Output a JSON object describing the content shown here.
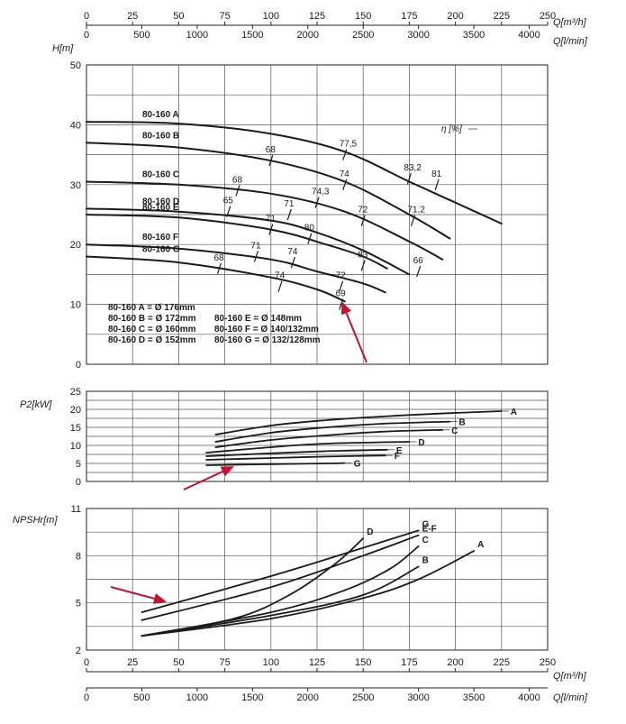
{
  "top_axis": {
    "q_m3h_label": "Q[m³/h]",
    "q_lmin_label": "Q[l/min]",
    "m3h_ticks": [
      "0",
      "25",
      "50",
      "75",
      "100",
      "125",
      "150",
      "175",
      "200",
      "225",
      "250"
    ],
    "lmin_ticks": [
      "0",
      "500",
      "1000",
      "1500",
      "2000",
      "2500",
      "3000",
      "3500",
      "4000"
    ]
  },
  "bottom_axis": {
    "q_m3h_label": "Q[m³/h]",
    "q_lmin_label": "Q[l/min]",
    "m3h_ticks": [
      "0",
      "25",
      "50",
      "75",
      "100",
      "125",
      "150",
      "175",
      "200",
      "225",
      "250"
    ],
    "lmin_ticks": [
      "0",
      "500",
      "1000",
      "1500",
      "2000",
      "2500",
      "3000",
      "3500",
      "4000"
    ]
  },
  "sizes_legend": {
    "col1": [
      "80-160 A = Ø 176mm",
      "80-160 B = Ø 172mm",
      "80-160 C = Ø 160mm",
      "80-160 D = Ø 152mm"
    ],
    "col2": [
      "80-160 E = Ø 148mm",
      "80-160 F = Ø 140/132mm",
      "80-160 G = Ø 132/128mm"
    ]
  },
  "chart_data": [
    {
      "type": "line",
      "title": "",
      "xlabel": "Q[m³/h]",
      "ylabel": "H[m]",
      "xlim": [
        0,
        250
      ],
      "ylim": [
        0,
        50
      ],
      "y_ticks": [
        "0",
        "10",
        "20",
        "30",
        "40",
        "50"
      ],
      "grid": true,
      "efficiency_label": "η [%]",
      "series": [
        {
          "name": "80-160 A",
          "x": [
            0,
            50,
            100,
            140,
            175,
            200,
            225
          ],
          "y": [
            40.5,
            40.2,
            38.5,
            35.5,
            30.5,
            27,
            23.5
          ]
        },
        {
          "name": "80-160 B",
          "x": [
            0,
            50,
            100,
            140,
            175,
            197
          ],
          "y": [
            37,
            36.2,
            34,
            30.5,
            25,
            21
          ]
        },
        {
          "name": "80-160 C",
          "x": [
            0,
            50,
            100,
            140,
            175,
            193
          ],
          "y": [
            30.5,
            30,
            28.5,
            25.5,
            20.5,
            17.5
          ]
        },
        {
          "name": "80-160 D",
          "x": [
            0,
            50,
            100,
            125,
            150,
            175
          ],
          "y": [
            26,
            25.5,
            24,
            22,
            19,
            15
          ]
        },
        {
          "name": "80-160 E",
          "x": [
            0,
            50,
            100,
            130,
            150,
            163
          ],
          "y": [
            25,
            24.5,
            22.5,
            20,
            18,
            16
          ]
        },
        {
          "name": "80-160 F",
          "x": [
            0,
            50,
            100,
            125,
            150,
            162
          ],
          "y": [
            20,
            19.3,
            17.5,
            15.5,
            13.5,
            12
          ]
        },
        {
          "name": "80-160 G",
          "x": [
            0,
            50,
            100,
            125,
            140
          ],
          "y": [
            18,
            17,
            14.5,
            12.5,
            10.5
          ]
        }
      ],
      "efficiency_marks": [
        {
          "label": "68",
          "x": 100,
          "y": 34
        },
        {
          "label": "77,5",
          "x": 140,
          "y": 35
        },
        {
          "label": "83,2",
          "x": 175,
          "y": 31
        },
        {
          "label": "81",
          "x": 190,
          "y": 30
        },
        {
          "label": "68",
          "x": 82,
          "y": 29
        },
        {
          "label": "74",
          "x": 140,
          "y": 30
        },
        {
          "label": "74,3",
          "x": 125,
          "y": 27
        },
        {
          "label": "72",
          "x": 150,
          "y": 24
        },
        {
          "label": "71,2",
          "x": 177,
          "y": 24
        },
        {
          "label": "65",
          "x": 77,
          "y": 25.5
        },
        {
          "label": "71",
          "x": 110,
          "y": 25
        },
        {
          "label": "71",
          "x": 100,
          "y": 22.5
        },
        {
          "label": "80",
          "x": 121,
          "y": 21
        },
        {
          "label": "83",
          "x": 150,
          "y": 16.5
        },
        {
          "label": "66",
          "x": 180,
          "y": 15.5
        },
        {
          "label": "71",
          "x": 92,
          "y": 18
        },
        {
          "label": "74",
          "x": 112,
          "y": 17
        },
        {
          "label": "72",
          "x": 138,
          "y": 13
        },
        {
          "label": "74",
          "x": 105,
          "y": 13
        },
        {
          "label": "68",
          "x": 72,
          "y": 16
        },
        {
          "label": "69",
          "x": 138,
          "y": 10
        }
      ]
    },
    {
      "type": "line",
      "xlabel": "Q[m³/h]",
      "ylabel": "P2[kW]",
      "xlim": [
        0,
        250
      ],
      "ylim": [
        0,
        25
      ],
      "y_ticks": [
        "0",
        "5",
        "10",
        "15",
        "20",
        "25"
      ],
      "grid": true,
      "series": [
        {
          "name": "A",
          "x": [
            70,
            100,
            130,
            160,
            190,
            225
          ],
          "y": [
            13,
            15.5,
            17,
            18,
            18.8,
            19.5
          ]
        },
        {
          "name": "B",
          "x": [
            70,
            100,
            130,
            160,
            197
          ],
          "y": [
            11,
            13.5,
            15,
            16,
            16.6
          ]
        },
        {
          "name": "C",
          "x": [
            70,
            100,
            130,
            160,
            193
          ],
          "y": [
            9.5,
            11.5,
            12.8,
            13.8,
            14.3
          ]
        },
        {
          "name": "D",
          "x": [
            65,
            100,
            130,
            175
          ],
          "y": [
            8,
            9.5,
            10.5,
            11
          ]
        },
        {
          "name": "E",
          "x": [
            65,
            100,
            130,
            163
          ],
          "y": [
            7,
            7.8,
            8.4,
            8.8
          ]
        },
        {
          "name": "F",
          "x": [
            65,
            100,
            130,
            162
          ],
          "y": [
            6,
            6.5,
            6.9,
            7.2
          ]
        },
        {
          "name": "G",
          "x": [
            65,
            100,
            130,
            140
          ],
          "y": [
            4.5,
            4.8,
            5,
            5.1
          ]
        }
      ]
    },
    {
      "type": "line",
      "xlabel": "Q[m³/h]",
      "ylabel": "NPSHr[m]",
      "xlim": [
        0,
        250
      ],
      "ylim": [
        2,
        11
      ],
      "y_ticks": [
        "2",
        "5",
        "8",
        "11"
      ],
      "grid": true,
      "series": [
        {
          "name": "A",
          "x": [
            30,
            100,
            150,
            180,
            210
          ],
          "y": [
            2.9,
            4,
            5.3,
            6.5,
            8.3
          ]
        },
        {
          "name": "B",
          "x": [
            30,
            100,
            150,
            180
          ],
          "y": [
            2.9,
            4.2,
            5.5,
            7.3
          ]
        },
        {
          "name": "C",
          "x": [
            30,
            100,
            140,
            165,
            180
          ],
          "y": [
            2.9,
            4.4,
            5.8,
            7.2,
            8.6
          ]
        },
        {
          "name": "D",
          "x": [
            30,
            80,
            110,
            135,
            150
          ],
          "y": [
            2.9,
            4,
            5.5,
            7.5,
            9.1
          ]
        },
        {
          "name": "E-F",
          "x": [
            30,
            100,
            150,
            180
          ],
          "y": [
            3.9,
            6,
            8,
            9.3
          ]
        },
        {
          "name": "G",
          "x": [
            30,
            100,
            150,
            180
          ],
          "y": [
            4.4,
            6.7,
            8.5,
            9.6
          ]
        }
      ]
    }
  ]
}
